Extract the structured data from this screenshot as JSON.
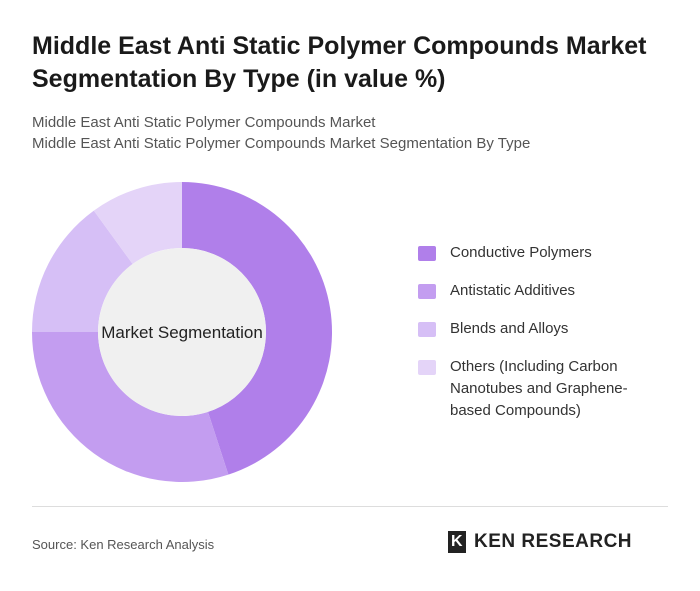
{
  "header": {
    "title": "Middle East Anti Static Polymer Compounds Market Segmentation By Type (in value %)",
    "subtitles": [
      "Middle East Anti Static Polymer Compounds Market",
      "Middle East Anti Static Polymer Compounds Market Segmentation By Type"
    ]
  },
  "chart_data": {
    "type": "donut",
    "center_label": "Market Segmentation",
    "categories": [
      "Conductive Polymers",
      "Antistatic Additives",
      "Blends and Alloys",
      "Others (Including Carbon Nanotubes and Graphene-based Compounds)"
    ],
    "values": [
      45,
      30,
      15,
      10
    ],
    "colors": [
      "#b07fea",
      "#c39df0",
      "#d6bff6",
      "#e4d4f8"
    ]
  },
  "footer": {
    "source": "Source: Ken Research Analysis",
    "logo": "KEN RESEARCH"
  }
}
